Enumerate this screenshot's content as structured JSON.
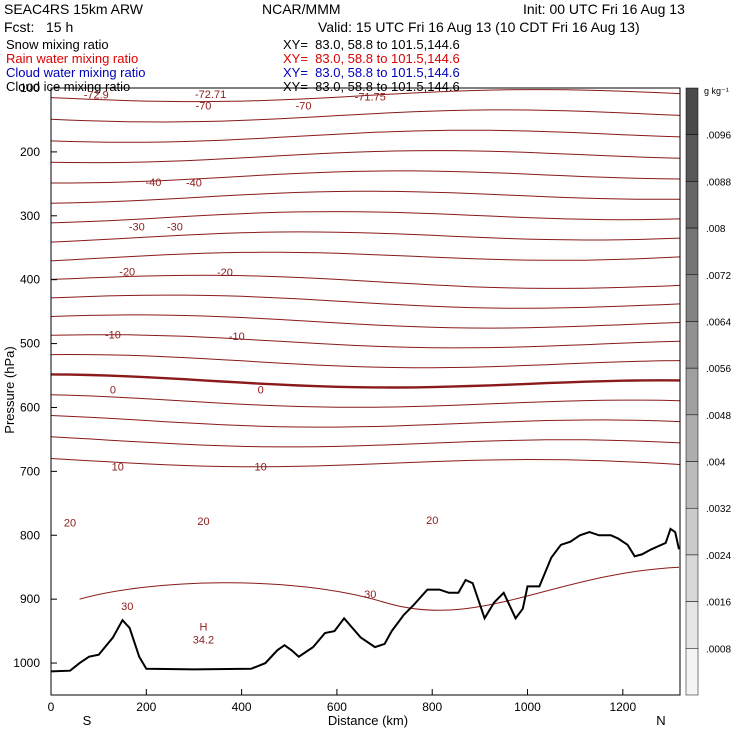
{
  "header": {
    "model": "SEAC4RS 15km ARW",
    "org": "NCAR/MMM",
    "init": "Init: 00 UTC Fri 16 Aug 13",
    "fcst": "Fcst:   15 h",
    "valid": "Valid: 15 UTC Fri 16 Aug 13 (10 CDT Fri 16 Aug 13)"
  },
  "fields": [
    {
      "label": "Snow mixing ratio",
      "xy": "XY=  83.0, 58.8 to 101.5,144.6",
      "color": "#000000"
    },
    {
      "label": "Rain water mixing ratio",
      "xy": "XY=  83.0, 58.8 to 101.5,144.6",
      "color": "#dd0000"
    },
    {
      "label": "Cloud water mixing ratio",
      "xy": "XY=  83.0, 58.8 to 101.5,144.6",
      "color": "#0000bb"
    },
    {
      "label": "Cloud ice mixing ratio",
      "xy": "XY=  83.0, 58.8 to 101.5,144.6",
      "color": "#000000"
    }
  ],
  "chart_data": {
    "type": "contour",
    "xlabel": "Distance (km)",
    "ylabel": "Pressure (hPa)",
    "xlim": [
      0,
      1320
    ],
    "ylim": [
      1050,
      100
    ],
    "x_ticks": [
      0,
      200,
      400,
      600,
      800,
      1000,
      1200
    ],
    "y_ticks": [
      100,
      200,
      300,
      400,
      500,
      600,
      700,
      800,
      900,
      1000
    ],
    "x_endpoints": {
      "left": "S",
      "right": "N"
    },
    "colorbar": {
      "units": "g kg⁻¹",
      "labels": [
        ".0096",
        ".0088",
        ".008",
        ".0072",
        ".0064",
        ".0056",
        ".0048",
        ".004",
        ".0032",
        ".0024",
        ".0016",
        ".0008"
      ],
      "color_top": "#4a4a4a",
      "color_bottom": "#f4f4f4"
    },
    "contour_color": "#8b1a1a",
    "contour_interval": 5,
    "contour_labels": [
      {
        "text": "-72.9",
        "x": 95,
        "p": 110
      },
      {
        "text": "-72.71",
        "x": 335,
        "p": 109
      },
      {
        "text": "-71.75",
        "x": 670,
        "p": 113
      },
      {
        "text": "-70",
        "x": 320,
        "p": 127
      },
      {
        "text": "-70",
        "x": 530,
        "p": 127
      },
      {
        "text": "-40",
        "x": 215,
        "p": 247
      },
      {
        "text": "-40",
        "x": 300,
        "p": 248
      },
      {
        "text": "-30",
        "x": 180,
        "p": 317
      },
      {
        "text": "-30",
        "x": 260,
        "p": 317
      },
      {
        "text": "-20",
        "x": 160,
        "p": 387
      },
      {
        "text": "-20",
        "x": 365,
        "p": 388
      },
      {
        "text": "-10",
        "x": 130,
        "p": 486
      },
      {
        "text": "-10",
        "x": 390,
        "p": 488
      },
      {
        "text": "0",
        "x": 130,
        "p": 572
      },
      {
        "text": "0",
        "x": 440,
        "p": 572
      },
      {
        "text": "10",
        "x": 140,
        "p": 692
      },
      {
        "text": "10",
        "x": 440,
        "p": 692
      },
      {
        "text": "20",
        "x": 40,
        "p": 780
      },
      {
        "text": "20",
        "x": 320,
        "p": 778
      },
      {
        "text": "20",
        "x": 800,
        "p": 776
      },
      {
        "text": "30",
        "x": 160,
        "p": 911
      },
      {
        "text": "30",
        "x": 670,
        "p": 892
      }
    ],
    "high": {
      "label": "H",
      "value": "34.2",
      "x": 320,
      "p": 952
    },
    "terrain": [
      [
        0,
        1013
      ],
      [
        40,
        1012
      ],
      [
        60,
        1000
      ],
      [
        80,
        990
      ],
      [
        100,
        987
      ],
      [
        130,
        960
      ],
      [
        150,
        933
      ],
      [
        165,
        945
      ],
      [
        185,
        990
      ],
      [
        200,
        1009
      ],
      [
        300,
        1010
      ],
      [
        420,
        1009
      ],
      [
        450,
        1000
      ],
      [
        475,
        980
      ],
      [
        490,
        972
      ],
      [
        505,
        980
      ],
      [
        520,
        990
      ],
      [
        550,
        975
      ],
      [
        575,
        953
      ],
      [
        595,
        950
      ],
      [
        615,
        930
      ],
      [
        650,
        960
      ],
      [
        680,
        975
      ],
      [
        700,
        970
      ],
      [
        715,
        950
      ],
      [
        740,
        925
      ],
      [
        760,
        910
      ],
      [
        790,
        885
      ],
      [
        815,
        885
      ],
      [
        835,
        890
      ],
      [
        855,
        890
      ],
      [
        870,
        870
      ],
      [
        885,
        875
      ],
      [
        910,
        930
      ],
      [
        930,
        905
      ],
      [
        950,
        890
      ],
      [
        975,
        930
      ],
      [
        990,
        915
      ],
      [
        1000,
        880
      ],
      [
        1010,
        880
      ],
      [
        1025,
        880
      ],
      [
        1050,
        835
      ],
      [
        1070,
        815
      ],
      [
        1090,
        810
      ],
      [
        1110,
        800
      ],
      [
        1130,
        795
      ],
      [
        1150,
        800
      ],
      [
        1175,
        800
      ],
      [
        1190,
        805
      ],
      [
        1210,
        815
      ],
      [
        1225,
        833
      ],
      [
        1240,
        830
      ],
      [
        1260,
        822
      ],
      [
        1290,
        812
      ],
      [
        1300,
        790
      ],
      [
        1310,
        795
      ],
      [
        1318,
        822
      ]
    ]
  }
}
